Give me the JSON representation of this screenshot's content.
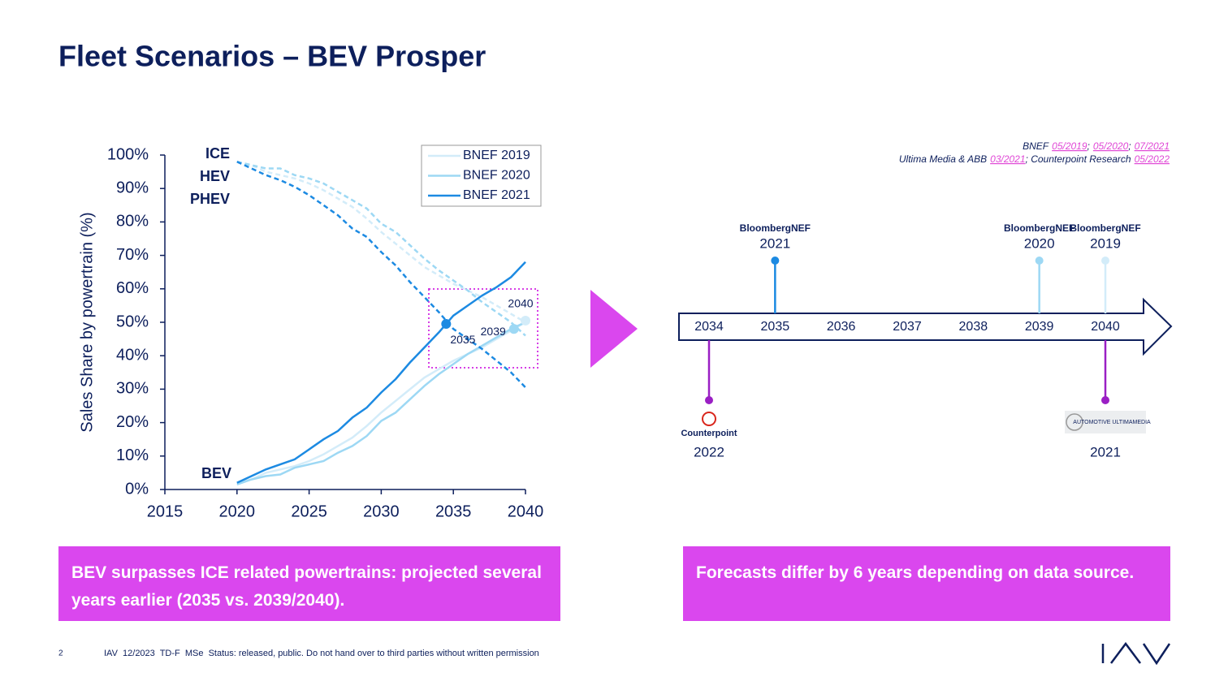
{
  "header": {
    "title": "Fleet Scenarios – BEV Prosper"
  },
  "chart_data": {
    "type": "line",
    "y_label": "Sales Share by powertrain (%)",
    "x": [
      2020,
      2021,
      2022,
      2023,
      2024,
      2025,
      2026,
      2027,
      2028,
      2029,
      2030,
      2031,
      2032,
      2033,
      2034,
      2035,
      2036,
      2037,
      2038,
      2039,
      2040
    ],
    "xlim": [
      2015,
      2040
    ],
    "xticks": [
      2015,
      2020,
      2025,
      2030,
      2035,
      2040
    ],
    "ylim": [
      0,
      100
    ],
    "yticks": [
      {
        "value": 0,
        "label": "0%"
      },
      {
        "value": 10,
        "label": "10%"
      },
      {
        "value": 20,
        "label": "20%"
      },
      {
        "value": 30,
        "label": "30%"
      },
      {
        "value": 40,
        "label": "40%"
      },
      {
        "value": 50,
        "label": "50%"
      },
      {
        "value": 60,
        "label": "60%"
      },
      {
        "value": 70,
        "label": "70%"
      },
      {
        "value": 80,
        "label": "80%"
      },
      {
        "value": 90,
        "label": "90%"
      },
      {
        "value": 100,
        "label": "100%"
      }
    ],
    "legend": "top-right",
    "series": [
      {
        "name": "BNEF 2019",
        "color": "#d3ecf9",
        "values": [
          2,
          3,
          5,
          6,
          7,
          8.5,
          10.5,
          13,
          15.5,
          19,
          23,
          26.5,
          30,
          33.5,
          36,
          38.5,
          40.5,
          42.5,
          45,
          47.5,
          50
        ],
        "ice_values": [
          98,
          97,
          95,
          94,
          93,
          91.5,
          89.5,
          87,
          84.5,
          81,
          77,
          73.5,
          70,
          66.5,
          64,
          61.5,
          59.5,
          57.5,
          55,
          52.5,
          50
        ]
      },
      {
        "name": "BNEF 2020",
        "color": "#9dd8f4",
        "values": [
          1.5,
          3,
          4,
          4.5,
          6.5,
          7.5,
          8.5,
          11,
          13,
          16,
          20.5,
          23,
          27,
          31,
          34.5,
          37.5,
          40.5,
          43,
          45.5,
          48,
          50
        ],
        "ice_values": [
          98,
          97,
          96,
          96,
          94,
          93,
          91.5,
          89,
          86.5,
          84,
          79.5,
          77,
          73,
          69,
          65.5,
          62.5,
          59.5,
          56,
          53,
          50,
          46
        ]
      },
      {
        "name": "BNEF 2021",
        "color": "#1c8ae2",
        "values": [
          2,
          4,
          6,
          7.5,
          9,
          12,
          15,
          17.5,
          21.5,
          24.5,
          29,
          33,
          38,
          42.5,
          47,
          52,
          55,
          58,
          60.5,
          63.5,
          68
        ],
        "ice_values": [
          98,
          96,
          94,
          92.5,
          90.5,
          88,
          85,
          82,
          78,
          75.5,
          71,
          67,
          62,
          57.5,
          53,
          48,
          45,
          42,
          38.5,
          35,
          30.5
        ]
      }
    ],
    "annotations": [
      "ICE",
      "HEV",
      "PHEV",
      "BEV"
    ],
    "highlights": [
      {
        "label": "2035",
        "x": 2034.5,
        "y": 49.5,
        "color": "#1c8ae2"
      },
      {
        "label": "2039",
        "x": 2039.2,
        "y": 48,
        "color": "#9dd8f4"
      },
      {
        "label": "2040",
        "x": 2040,
        "y": 50.5,
        "color": "#d3ecf9"
      }
    ]
  },
  "timeline": {
    "sources": [
      [
        {
          "text": "BNEF"
        },
        {
          "link": "05/2019"
        },
        {
          "text": ";"
        },
        {
          "link": "05/2020"
        },
        {
          "text": ";"
        },
        {
          "link": "07/2021"
        }
      ],
      [
        {
          "text": "Ultima Media & ABB"
        },
        {
          "link": "03/2021"
        },
        {
          "text": "; Counterpoint Research"
        },
        {
          "link": "05/2022"
        }
      ]
    ],
    "years": [
      2034,
      2035,
      2036,
      2037,
      2038,
      2039,
      2040
    ],
    "above": [
      {
        "source": "BloombergNEF",
        "label": "2021",
        "year": 2035,
        "color": "#1c8ae2"
      },
      {
        "source": "BloombergNEF",
        "label": "2020",
        "year": 2039,
        "color": "#9dd8f4"
      },
      {
        "source": "BloombergNEF",
        "label": "2019",
        "year": 2040,
        "color": "#d3ecf9"
      }
    ],
    "below": [
      {
        "source": "Counterpoint",
        "label": "2022",
        "year": 2034,
        "color": "#9a1fc4"
      },
      {
        "source": "AUTOMOTIVE ULTIMAMEDIA",
        "label": "2021",
        "year": 2040,
        "color": "#9a1fc4"
      }
    ]
  },
  "callouts": [
    "BEV surpasses ICE related powertrains: projected several years earlier (2035 vs. 2039/2040).",
    "Forecasts differ by 6 years depending on data source."
  ],
  "footer": {
    "page": "2",
    "text": "IAV  12/2023  TD-F  MSe  Status: released, public. Do not hand over to third parties without written permission"
  }
}
